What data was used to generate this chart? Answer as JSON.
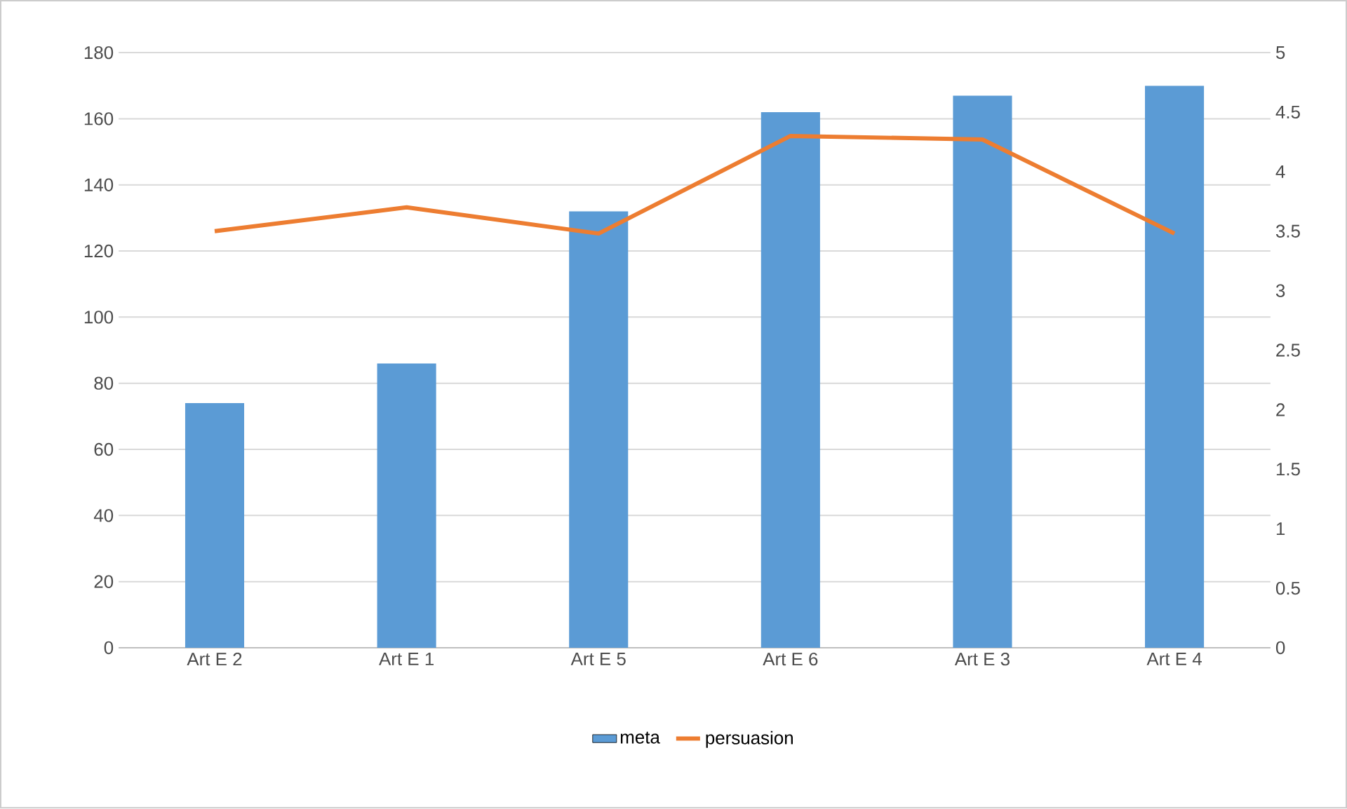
{
  "chart_data": {
    "type": "bar",
    "categories": [
      "Art E 2",
      "Art E 1",
      "Art E 5",
      "Art E 6",
      "Art E 3",
      "Art  E 4"
    ],
    "series": [
      {
        "name": "meta",
        "color": "#5b9bd5",
        "values": [
          74,
          86,
          132,
          162,
          167,
          170
        ]
      },
      {
        "name": "persuasion",
        "type": "line",
        "axis": "y2",
        "color": "#ed7d31",
        "values": [
          3.5,
          3.7,
          3.48,
          4.3,
          4.27,
          3.48
        ]
      }
    ],
    "ylim": [
      0,
      180
    ],
    "yticks": [
      0,
      20,
      40,
      60,
      80,
      100,
      120,
      140,
      160,
      180
    ],
    "y2lim": [
      0,
      5
    ],
    "y2ticks": [
      0,
      0.5,
      1,
      1.5,
      2,
      2.5,
      3,
      3.5,
      4,
      4.5,
      5
    ],
    "grid": "y",
    "legend": "bottom",
    "marker": "none",
    "line_style": "solid"
  }
}
